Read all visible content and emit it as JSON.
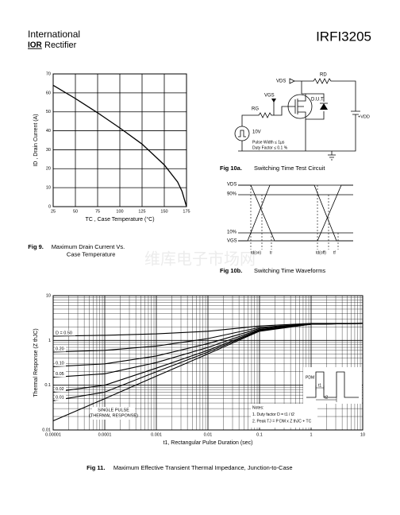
{
  "header": {
    "brand_top": "International",
    "brand_logo": "IOR",
    "brand_bottom": "Rectifier",
    "part_number": "IRFI3205"
  },
  "watermark": "维库电子市场网",
  "chart_data": [
    {
      "type": "line",
      "xlabel": "TC , Case Temperature (°C)",
      "ylabel": "ID , Drain Current (A)",
      "x": [
        25,
        50,
        75,
        100,
        125,
        150,
        165,
        170,
        175
      ],
      "values": [
        64,
        57,
        49.5,
        41.5,
        33,
        22,
        13,
        8,
        0
      ],
      "color": "#000000",
      "xlim": [
        25,
        175
      ],
      "ylim": [
        0,
        70
      ],
      "xticks": [
        25,
        50,
        75,
        100,
        125,
        150,
        175
      ],
      "yticks": [
        0,
        10,
        20,
        30,
        40,
        50,
        60,
        70
      ],
      "grid": true,
      "xscale": "linear",
      "yscale": "linear",
      "caption_label": "Fig 9.",
      "caption": [
        "Maximum Drain Current Vs.",
        "Case Temperature"
      ]
    },
    {
      "type": "line",
      "xlabel": "t1, Rectangular Pulse Duration (sec)",
      "ylabel": "Thermal Response (Z thJC)",
      "x": [
        1e-05,
        0.0001,
        0.001,
        0.01,
        0.1,
        1,
        10
      ],
      "series": [
        {
          "name": "D = 0.50",
          "color": "#000000",
          "values": [
            1.25,
            1.3,
            1.4,
            1.6,
            2.1,
            2.4,
            2.4
          ]
        },
        {
          "name": "0.20",
          "color": "#000000",
          "values": [
            0.55,
            0.6,
            0.75,
            1.1,
            1.95,
            2.35,
            2.4
          ]
        },
        {
          "name": "0.10",
          "color": "#000000",
          "values": [
            0.26,
            0.3,
            0.45,
            0.85,
            1.85,
            2.35,
            2.4
          ]
        },
        {
          "name": "0.05",
          "color": "#000000",
          "values": [
            0.15,
            0.18,
            0.32,
            0.7,
            1.75,
            2.3,
            2.4
          ]
        },
        {
          "name": "0.02",
          "color": "#000000",
          "values": [
            0.07,
            0.1,
            0.24,
            0.6,
            1.7,
            2.3,
            2.4
          ]
        },
        {
          "name": "0.01",
          "color": "#000000",
          "values": [
            0.045,
            0.07,
            0.2,
            0.55,
            1.65,
            2.3,
            2.4
          ]
        },
        {
          "name": "SINGLE PULSE",
          "color": "#000000",
          "values": [
            0.016,
            0.05,
            0.16,
            0.5,
            1.6,
            2.3,
            2.4
          ]
        }
      ],
      "single_pulse_note": "(THERMAL RESPONSE)",
      "xlim": [
        1e-05,
        10
      ],
      "ylim": [
        0.01,
        10
      ],
      "xticks": [
        1e-05,
        0.0001,
        0.001,
        0.01,
        0.1,
        1,
        10
      ],
      "yticks": [
        0.01,
        0.1,
        1,
        10
      ],
      "grid": true,
      "xscale": "log",
      "yscale": "log",
      "notes": [
        "Notes:",
        "1. Duty factor D = t1 / t2",
        "2. Peak TJ = P DM x Z thJC + TC"
      ],
      "inset": {
        "pdm": "PDM",
        "t1": "t1",
        "t2": "t2"
      },
      "caption_label": "Fig 11.",
      "caption": [
        "Maximum Effective Transient Thermal Impedance, Junction-to-Case"
      ]
    }
  ],
  "fig10a": {
    "vds": "VDS",
    "rd": "RD",
    "vgs": "VGS",
    "rg": "RG",
    "dut": "D.U.T.",
    "source": "10V",
    "vdd": "+VDD",
    "pulse_width": "Pulse Width ≤ 1µs",
    "duty_factor": "Duty Factor ≤ 0.1 %",
    "caption_label": "Fig 10a.",
    "caption": "Switching Time Test Circuit"
  },
  "fig10b": {
    "vds": "VDS",
    "p90": "90%",
    "p10": "10%",
    "vgs": "VGS",
    "td_on": "td(on)",
    "tr": "tr",
    "td_off": "td(off)",
    "tf": "tf",
    "caption_label": "Fig 10b.",
    "caption": "Switching Time Waveforms"
  }
}
